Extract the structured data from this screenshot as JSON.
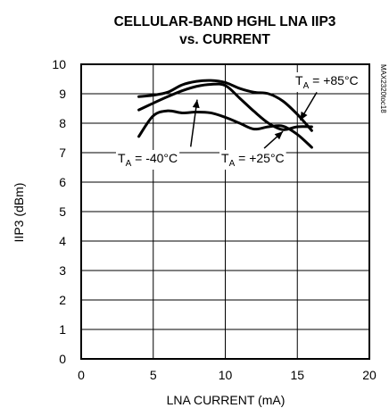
{
  "chart_data": {
    "type": "line",
    "title_line1": "CELLULAR-BAND HGHL LNA IIP3",
    "title_line2": "vs. CURRENT",
    "xlabel": "LNA CURRENT (mA)",
    "ylabel": "IIP3 (dBm)",
    "xlim": [
      0,
      20
    ],
    "ylim": [
      0,
      10
    ],
    "xticks": [
      "0",
      "5",
      "10",
      "15",
      "20"
    ],
    "yticks": [
      "0",
      "1",
      "2",
      "3",
      "4",
      "5",
      "6",
      "7",
      "8",
      "9",
      "10"
    ],
    "grid": true,
    "part_code": "MAX2320toc18",
    "annotations": [
      {
        "id": "minus40",
        "prefix": "T",
        "sub": "A",
        "suffix": " = -40°C"
      },
      {
        "id": "plus25",
        "prefix": "T",
        "sub": "A",
        "suffix": " = +25°C"
      },
      {
        "id": "plus85",
        "prefix": "T",
        "sub": "A",
        "suffix": " = +85°C"
      }
    ],
    "series": [
      {
        "id": "minus40",
        "points": [
          [
            4,
            8.9
          ],
          [
            5,
            8.95
          ],
          [
            6,
            9.05
          ],
          [
            7,
            9.3
          ],
          [
            8,
            9.42
          ],
          [
            9,
            9.45
          ],
          [
            10,
            9.38
          ],
          [
            11,
            9.18
          ],
          [
            12,
            9.05
          ],
          [
            13,
            9.0
          ],
          [
            14,
            8.75
          ],
          [
            15,
            8.3
          ],
          [
            16,
            7.75
          ]
        ]
      },
      {
        "id": "plus25",
        "points": [
          [
            4,
            8.45
          ],
          [
            5,
            8.68
          ],
          [
            6,
            8.9
          ],
          [
            7,
            9.1
          ],
          [
            8,
            9.25
          ],
          [
            9,
            9.32
          ],
          [
            10,
            9.28
          ],
          [
            11,
            8.85
          ],
          [
            12,
            8.4
          ],
          [
            13,
            8.0
          ],
          [
            14,
            7.78
          ],
          [
            15,
            7.88
          ],
          [
            16,
            7.88
          ]
        ]
      },
      {
        "id": "plus85",
        "points": [
          [
            4,
            7.55
          ],
          [
            5,
            8.25
          ],
          [
            6,
            8.42
          ],
          [
            7,
            8.35
          ],
          [
            8,
            8.38
          ],
          [
            9,
            8.35
          ],
          [
            10,
            8.2
          ],
          [
            11,
            8.0
          ],
          [
            12,
            7.8
          ],
          [
            13,
            7.88
          ],
          [
            14,
            7.9
          ],
          [
            15,
            7.62
          ],
          [
            16,
            7.18
          ]
        ]
      }
    ]
  }
}
